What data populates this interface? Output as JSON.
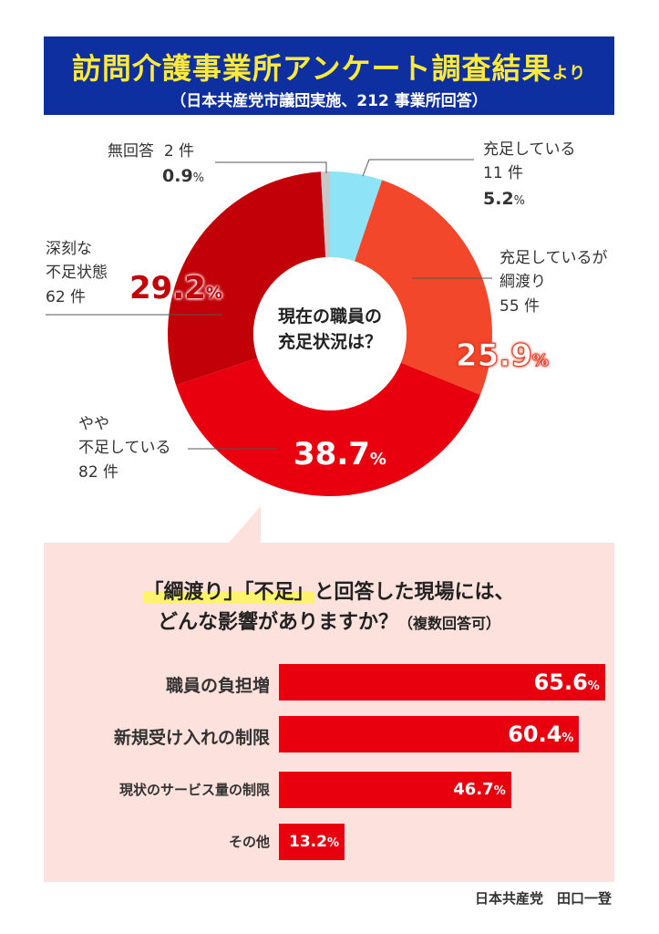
{
  "header": {
    "title": "訪問介護事業所アンケート調査結果",
    "title_suffix": "より",
    "subtitle": "（日本共産党市議団実施、212 事業所回答）"
  },
  "chart_data": [
    {
      "type": "pie",
      "center_label": [
        "現在の職員の",
        "充足状況は？"
      ],
      "slices": [
        {
          "label": "充足している",
          "count": "11 件",
          "value": 5.2,
          "color": "#8ee3f7"
        },
        {
          "label": "充足しているが綱渡り",
          "count": "55 件",
          "value": 25.9,
          "color": "#f2472b"
        },
        {
          "label": "やや不足している",
          "count": "82 件",
          "value": 38.7,
          "color": "#e8000f"
        },
        {
          "label": "深刻な不足状態",
          "count": "62 件",
          "value": 29.2,
          "color": "#c20008"
        },
        {
          "label": "無回答",
          "count": "2 件",
          "value": 0.9,
          "color": "#c8c8c8"
        }
      ]
    },
    {
      "type": "bar",
      "orientation": "horizontal",
      "title_parts": [
        "「綱渡り」",
        "「不足」",
        "と回答した現場には、",
        "どんな影響がありますか？",
        "（複数回答可）"
      ],
      "categories": [
        "職員の負担増",
        "新規受け入れの制限",
        "現状のサービス量の制限",
        "その他"
      ],
      "values": [
        65.6,
        60.4,
        46.7,
        13.2
      ],
      "unit": "%",
      "color": "#e8000f"
    }
  ],
  "labels": {
    "no_answer": {
      "name": "無回答",
      "count": "2 件",
      "pct": "0.9",
      "unit": "%"
    },
    "sufficient": {
      "name": "充足している",
      "count": "11 件",
      "pct": "5.2",
      "unit": "%"
    },
    "tightrope": {
      "line1": "充足しているが",
      "line2": "綱渡り",
      "count": "55 件",
      "pct": "25.9",
      "unit": "%"
    },
    "somewhat": {
      "line1": "やや",
      "line2": "不足している",
      "count": "82 件",
      "pct": "38.7",
      "unit": "%"
    },
    "serious": {
      "line1": "深刻な",
      "line2": "不足状態",
      "count": "62 件",
      "pct": "29.2",
      "unit": "%"
    }
  },
  "footer": {
    "credit": "日本共産党　田口一登"
  }
}
